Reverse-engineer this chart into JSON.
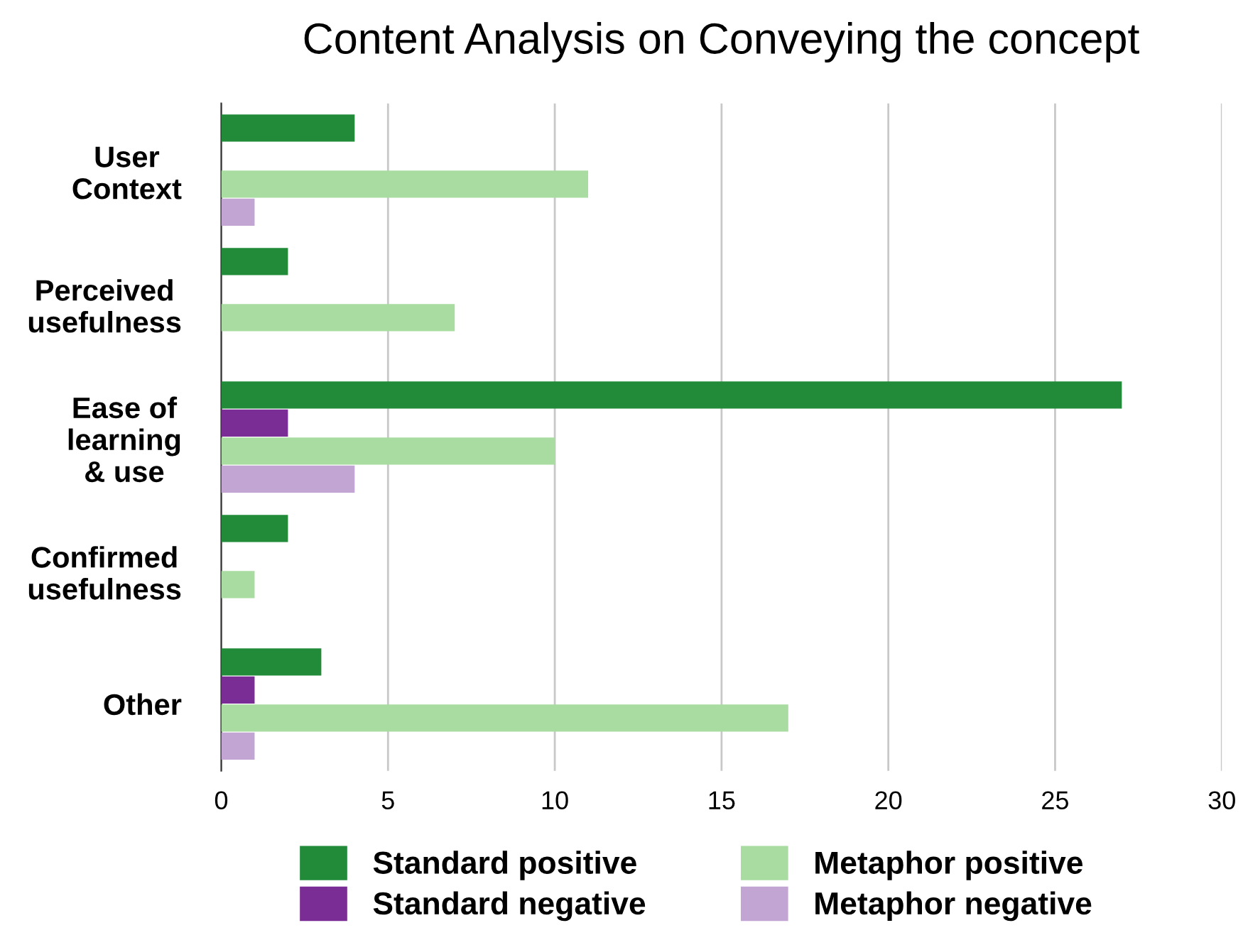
{
  "chart_data": {
    "type": "bar",
    "orientation": "horizontal",
    "title": "Content Analysis on Conveying the concept",
    "categories": [
      "User\nContext",
      "Perceived\nusefulness",
      "Ease of\nlearning\n& use",
      "Confirmed\nusefulness",
      "Other"
    ],
    "series": [
      {
        "name": "Standard positive",
        "color": "#228b3a",
        "values": [
          4,
          2,
          27,
          2,
          3
        ]
      },
      {
        "name": "Standard negative",
        "color": "#7b2d96",
        "values": [
          0,
          0,
          2,
          0,
          1
        ]
      },
      {
        "name": "Metaphor positive",
        "color": "#a8dca0",
        "values": [
          11,
          7,
          10,
          1,
          17
        ]
      },
      {
        "name": "Metaphor negative",
        "color": "#c3a5d4",
        "values": [
          1,
          0,
          4,
          0,
          1
        ]
      }
    ],
    "xlim": [
      0,
      30
    ],
    "xticks": [
      0,
      5,
      10,
      15,
      20,
      25,
      30
    ],
    "grid": "x",
    "legend": "bottom"
  }
}
